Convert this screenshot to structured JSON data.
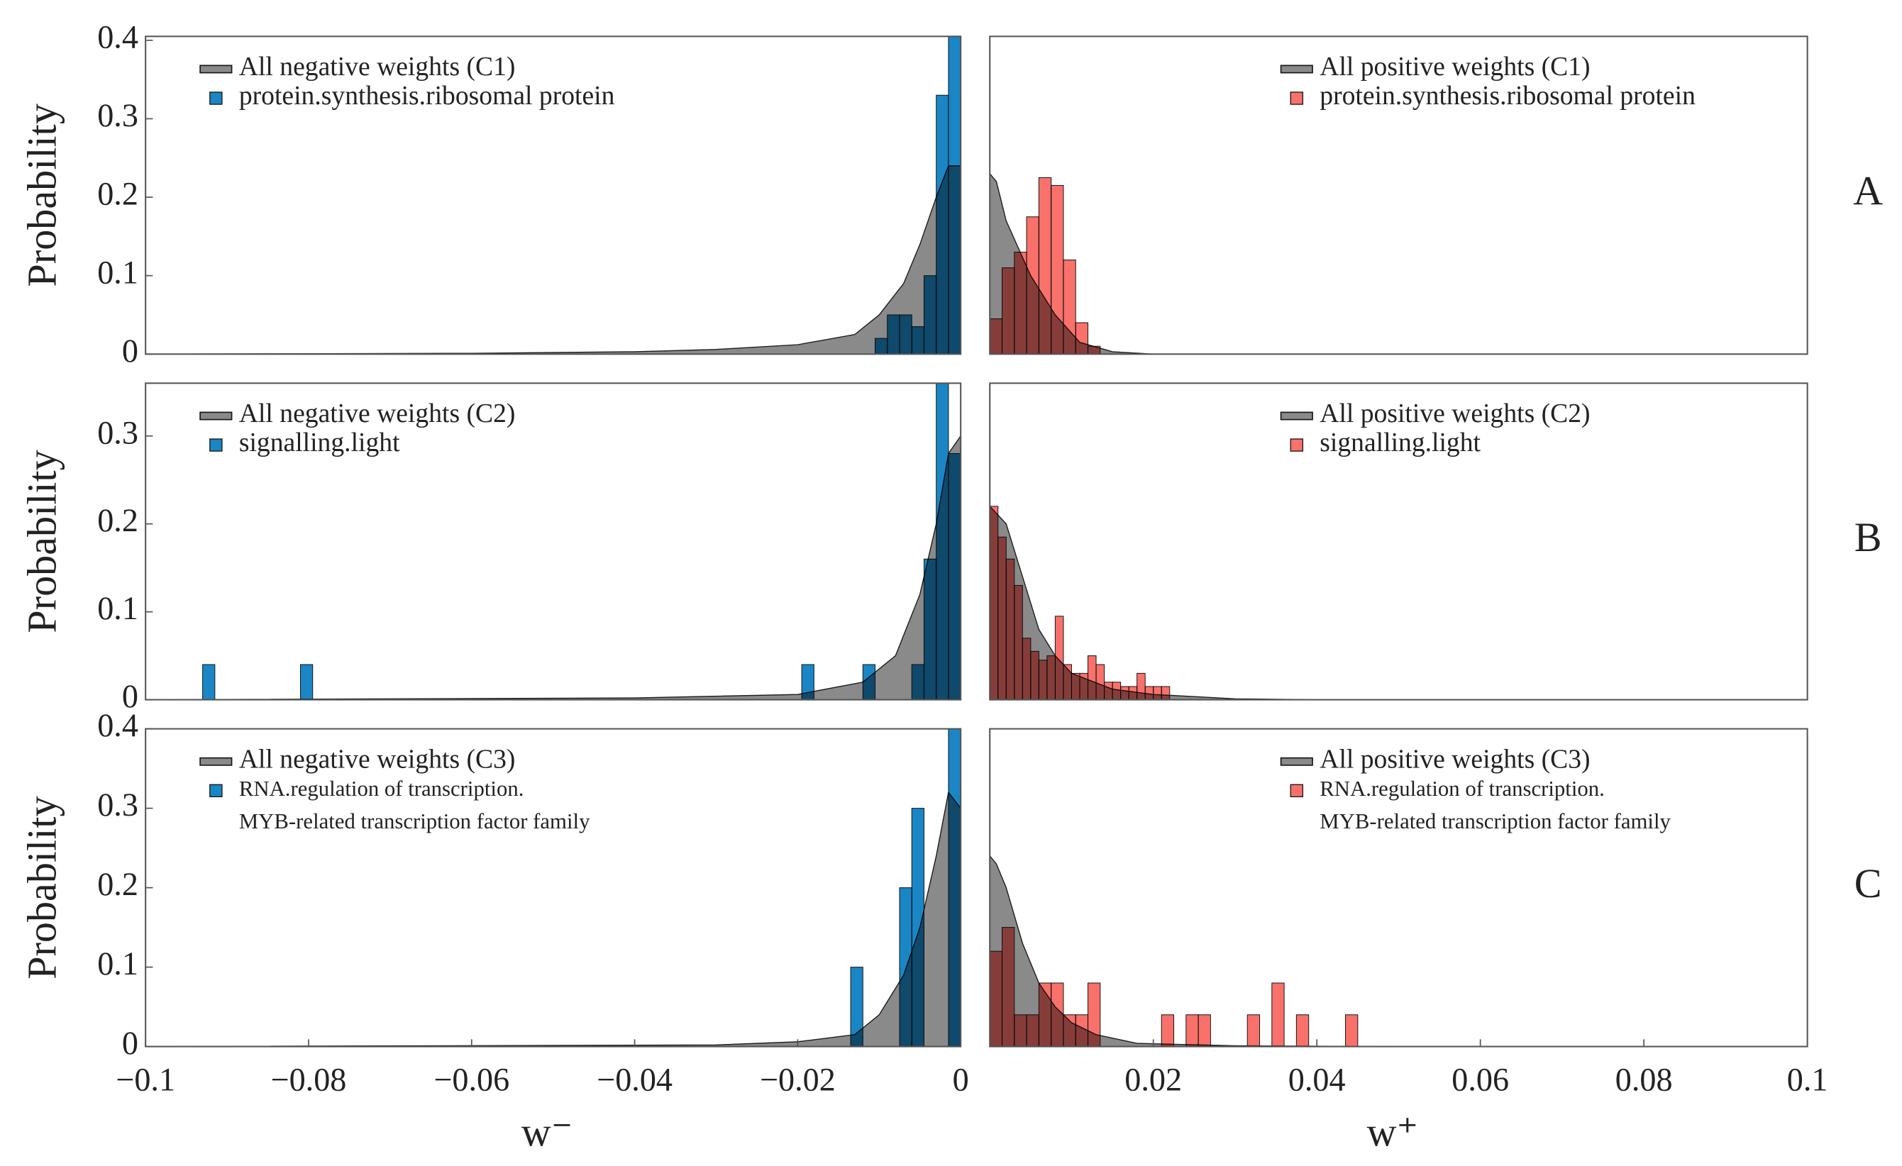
{
  "chart_data": [
    {
      "type": "histogram",
      "ylabel": "Probability",
      "xlim": [
        -0.1,
        0
      ],
      "ylim": [
        0,
        0.405
      ],
      "yticks": [
        0,
        0.1,
        0.2,
        0.3,
        0.4
      ],
      "series": [
        {
          "name": "All negative weights (C1)",
          "color": "#8a8a8a",
          "x": [
            -0.1,
            -0.06,
            -0.04,
            -0.03,
            -0.02,
            -0.013,
            -0.01,
            -0.007,
            -0.005,
            -0.003,
            -0.0015,
            0
          ],
          "values": [
            0,
            0.001,
            0.003,
            0.006,
            0.012,
            0.025,
            0.05,
            0.09,
            0.14,
            0.2,
            0.24,
            0.24
          ]
        },
        {
          "name": "protein.synthesis.ribosomal protein",
          "color": "#1a86c5",
          "bins": [
            -0.0105,
            -0.009,
            -0.0075,
            -0.006,
            -0.0045,
            -0.003,
            -0.0015,
            0
          ],
          "values": [
            0.02,
            0.05,
            0.05,
            0.035,
            0.1,
            0.33,
            0.42
          ]
        }
      ]
    },
    {
      "type": "histogram",
      "annotation": "A",
      "xlim": [
        0,
        0.1
      ],
      "ylim": [
        0,
        0.405
      ],
      "series": [
        {
          "name": "All positive weights (C1)",
          "color": "#8a8a8a",
          "x": [
            0,
            0.0008,
            0.002,
            0.005,
            0.008,
            0.011,
            0.015,
            0.02,
            0.1
          ],
          "values": [
            0.23,
            0.22,
            0.17,
            0.1,
            0.05,
            0.015,
            0.003,
            0,
            0
          ]
        },
        {
          "name": "protein.synthesis.ribosomal protein",
          "color": "#f8716a",
          "bins": [
            0,
            0.0015,
            0.003,
            0.0045,
            0.006,
            0.0075,
            0.009,
            0.0105,
            0.012,
            0.0135
          ],
          "values": [
            0.045,
            0.11,
            0.13,
            0.175,
            0.225,
            0.215,
            0.12,
            0.04,
            0.01
          ]
        }
      ]
    },
    {
      "type": "histogram",
      "ylabel": "Probability",
      "xlim": [
        -0.1,
        0
      ],
      "ylim": [
        0,
        0.36
      ],
      "yticks": [
        0,
        0.1,
        0.2,
        0.3
      ],
      "series": [
        {
          "name": "All negative weights (C2)",
          "color": "#8a8a8a",
          "x": [
            -0.1,
            -0.04,
            -0.02,
            -0.012,
            -0.008,
            -0.005,
            -0.003,
            -0.0015,
            0
          ],
          "values": [
            0,
            0.002,
            0.006,
            0.02,
            0.05,
            0.12,
            0.2,
            0.28,
            0.3
          ]
        },
        {
          "name": "signalling.light",
          "color": "#1a86c5",
          "bins": [
            -0.093,
            -0.0915,
            -0.081,
            -0.0795,
            -0.0195,
            -0.018,
            -0.012,
            -0.0105,
            -0.006,
            -0.0045,
            -0.003,
            -0.0015,
            0
          ],
          "values": [
            0.04,
            0,
            0.04,
            0,
            0.04,
            0,
            0.04,
            0,
            0.04,
            0.16,
            0.36,
            0.28
          ]
        }
      ]
    },
    {
      "type": "histogram",
      "annotation": "B",
      "xlim": [
        0,
        0.1
      ],
      "ylim": [
        0,
        0.36
      ],
      "series": [
        {
          "name": "All positive weights (C2)",
          "color": "#8a8a8a",
          "x": [
            0,
            0.002,
            0.004,
            0.006,
            0.008,
            0.01,
            0.015,
            0.02,
            0.03,
            0.04,
            0.1
          ],
          "values": [
            0.22,
            0.2,
            0.14,
            0.08,
            0.05,
            0.03,
            0.012,
            0.006,
            0.001,
            0,
            0
          ]
        },
        {
          "name": "signalling.light",
          "color": "#f8716a",
          "bins": [
            0,
            0.001,
            0.002,
            0.003,
            0.004,
            0.005,
            0.006,
            0.007,
            0.008,
            0.009,
            0.01,
            0.011,
            0.012,
            0.013,
            0.014,
            0.015,
            0.016,
            0.017,
            0.018,
            0.019,
            0.02,
            0.021,
            0.022
          ],
          "values": [
            0.22,
            0.185,
            0.16,
            0.13,
            0.07,
            0.055,
            0.045,
            0.05,
            0.095,
            0.04,
            0.03,
            0.03,
            0.05,
            0.04,
            0.02,
            0.02,
            0.015,
            0.015,
            0.03,
            0.015,
            0.015,
            0.015
          ]
        }
      ]
    },
    {
      "type": "histogram",
      "ylabel": "Probability",
      "xlabel": "w⁻",
      "xlim": [
        -0.1,
        0
      ],
      "ylim": [
        0,
        0.4
      ],
      "yticks": [
        0,
        0.1,
        0.2,
        0.3,
        0.4
      ],
      "xticks": [
        {
          "value": -0.1,
          "label": "−0.1"
        },
        {
          "value": -0.08,
          "label": "−0.08"
        },
        {
          "value": -0.06,
          "label": "−0.06"
        },
        {
          "value": -0.04,
          "label": "−0.04"
        },
        {
          "value": -0.02,
          "label": "−0.02"
        },
        0
      ],
      "series": [
        {
          "name": "All negative weights (C3)",
          "color": "#8a8a8a",
          "x": [
            -0.1,
            -0.03,
            -0.02,
            -0.013,
            -0.01,
            -0.007,
            -0.005,
            -0.003,
            -0.0015,
            0
          ],
          "values": [
            0,
            0.002,
            0.006,
            0.015,
            0.04,
            0.09,
            0.15,
            0.24,
            0.32,
            0.3
          ]
        },
        {
          "name": [
            "RNA.regulation of transcription.",
            "MYB-related transcription factor family"
          ],
          "color": "#1a86c5",
          "bins": [
            -0.0135,
            -0.012,
            -0.0105,
            -0.009,
            -0.0075,
            -0.006,
            -0.0045,
            -0.003,
            -0.0015,
            0
          ],
          "values": [
            0.1,
            0,
            0,
            0,
            0.2,
            0.3,
            0,
            0,
            0.42
          ]
        }
      ]
    },
    {
      "type": "histogram",
      "annotation": "C",
      "xlabel": "w⁺",
      "xlim": [
        0,
        0.1
      ],
      "ylim": [
        0,
        0.4
      ],
      "xticks": [
        0.02,
        0.04,
        0.06,
        0.08,
        0.1
      ],
      "series": [
        {
          "name": "All positive weights (C3)",
          "color": "#8a8a8a",
          "x": [
            0,
            0.0008,
            0.002,
            0.004,
            0.006,
            0.008,
            0.01,
            0.013,
            0.018,
            0.03,
            0.05,
            0.1
          ],
          "values": [
            0.24,
            0.23,
            0.2,
            0.13,
            0.08,
            0.05,
            0.03,
            0.015,
            0.004,
            0.001,
            0,
            0
          ]
        },
        {
          "name": [
            "RNA.regulation of transcription.",
            "MYB-related transcription factor family"
          ],
          "color": "#f8716a",
          "bins": [
            0,
            0.0015,
            0.003,
            0.0045,
            0.006,
            0.0075,
            0.009,
            0.0105,
            0.012,
            0.0135,
            0.015,
            0.0165,
            0.018,
            0.0195,
            0.021,
            0.0225,
            0.024,
            0.0255,
            0.027,
            0.0285,
            0.03,
            0.0315,
            0.033,
            0.0345,
            0.036,
            0.0375,
            0.039,
            0.0405,
            0.042,
            0.0435,
            0.045
          ],
          "values": [
            0.12,
            0.15,
            0.04,
            0.04,
            0.08,
            0.08,
            0.04,
            0.04,
            0.08,
            0,
            0,
            0,
            0,
            0,
            0.04,
            0,
            0.04,
            0.04,
            0,
            0,
            0,
            0.04,
            0,
            0.08,
            0,
            0.04,
            0,
            0,
            0,
            0.04
          ]
        }
      ]
    }
  ]
}
